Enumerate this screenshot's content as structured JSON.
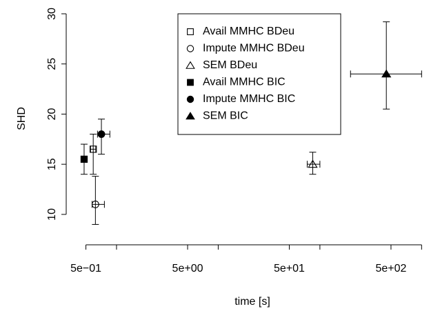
{
  "chart_data": {
    "type": "scatter",
    "xlabel": "time [s]",
    "ylabel": "SHD",
    "x_scale": "log",
    "xlim": [
      0.38,
      1200
    ],
    "ylim": [
      8.0,
      30
    ],
    "x_ticks": [
      0.5,
      1,
      5,
      10,
      50,
      100,
      500,
      1000
    ],
    "x_tick_labels": [
      {
        "value": 0.5,
        "label": "5e−01"
      },
      {
        "value": 5,
        "label": "5e+00"
      },
      {
        "value": 50,
        "label": "5e+01"
      },
      {
        "value": 500,
        "label": "5e+02"
      }
    ],
    "y_ticks": [
      10,
      15,
      20,
      25,
      30
    ],
    "y_tick_labels": [
      "10",
      "15",
      "20",
      "25",
      "30"
    ],
    "grid": false,
    "legend_position": "top-center",
    "series": [
      {
        "name": "Avail MMHC BDeu",
        "marker": "open-square",
        "x": 0.59,
        "y": 16.5,
        "x_err": [
          0.555,
          0.625
        ],
        "y_err": [
          14.0,
          18.0
        ]
      },
      {
        "name": "Impute MMHC BDeu",
        "marker": "open-circle",
        "x": 0.62,
        "y": 11.0,
        "x_err": [
          0.575,
          0.76
        ],
        "y_err": [
          9.0,
          13.8
        ]
      },
      {
        "name": "SEM BDeu",
        "marker": "open-triangle",
        "x": 85,
        "y": 15.0,
        "x_err": [
          75,
          100
        ],
        "y_err": [
          14.0,
          16.2
        ]
      },
      {
        "name": "Avail MMHC BIC",
        "marker": "filled-square",
        "x": 0.48,
        "y": 15.5,
        "x_err": [
          0.47,
          0.5
        ],
        "y_err": [
          14.0,
          17.0
        ]
      },
      {
        "name": "Impute MMHC BIC",
        "marker": "filled-circle",
        "x": 0.71,
        "y": 18.0,
        "x_err": [
          0.65,
          0.86
        ],
        "y_err": [
          16.0,
          19.5
        ]
      },
      {
        "name": "SEM BIC",
        "marker": "filled-triangle",
        "x": 450,
        "y": 24.0,
        "x_err": [
          200,
          1000
        ],
        "y_err": [
          20.5,
          29.2
        ]
      }
    ]
  }
}
